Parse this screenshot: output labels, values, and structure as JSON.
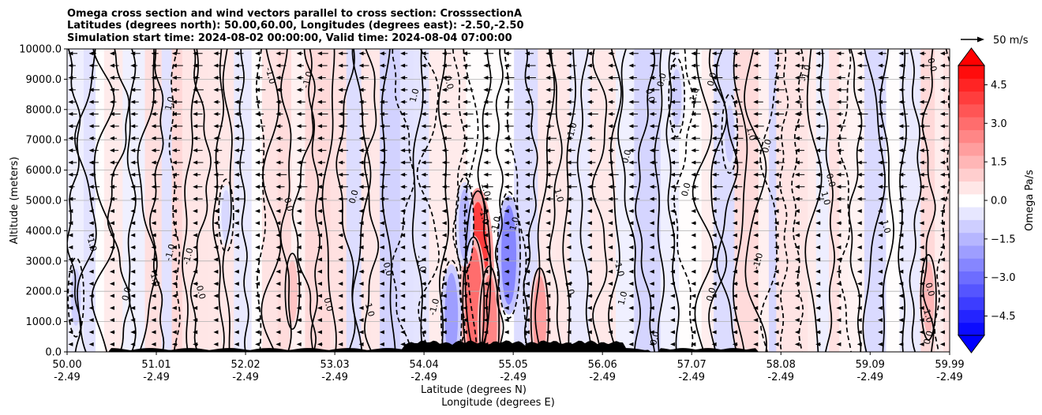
{
  "chart_data": {
    "type": "contourf",
    "title_lines": [
      "Omega cross section and wind vectors parallel to cross section: CrosssectionA",
      "Latitudes (degrees north): 50.00,60.00, Longitudes (degrees east): -2.50,-2.50",
      "Simulation start time: 2024-08-02 00:00:00, Valid time: 2024-08-04 07:00:00"
    ],
    "xlabel_lines": [
      "Latitude (degrees N)",
      "Longitude (degrees E)"
    ],
    "ylabel": "Altitude (meters)",
    "ylim": [
      0,
      10000
    ],
    "yticks": [
      0,
      1000,
      2000,
      3000,
      4000,
      5000,
      6000,
      7000,
      8000,
      9000,
      10000
    ],
    "ytick_labels": [
      "0.0",
      "1000.0",
      "2000.0",
      "3000.0",
      "4000.0",
      "5000.0",
      "6000.0",
      "7000.0",
      "8000.0",
      "9000.0",
      "10000.0"
    ],
    "xlim": [
      50.0,
      59.99
    ],
    "xticks": [
      50.0,
      51.01,
      52.02,
      53.03,
      54.04,
      55.05,
      56.06,
      57.07,
      58.08,
      59.09,
      59.99
    ],
    "xtick_lat_labels": [
      "50.00",
      "51.01",
      "52.02",
      "53.03",
      "54.04",
      "55.05",
      "56.06",
      "57.07",
      "58.08",
      "59.09",
      "59.99"
    ],
    "xtick_lon_labels": [
      "-2.49",
      "-2.49",
      "-2.49",
      "-2.49",
      "-2.49",
      "-2.49",
      "-2.49",
      "-2.49",
      "-2.49",
      "-2.49",
      "-2.49"
    ],
    "grid": "horizontal",
    "colorbar": {
      "label": "Omega Pa/s",
      "range": [
        -5.25,
        5.25
      ],
      "step": 0.5,
      "extend": "both",
      "ticks": [
        -4.5,
        -3.0,
        -1.5,
        0.0,
        1.5,
        3.0,
        4.5
      ],
      "tick_labels": [
        "−4.5",
        "−3.0",
        "−1.5",
        "0.0",
        "1.5",
        "3.0",
        "4.5"
      ],
      "colormap": "bwr"
    },
    "quiver_key": {
      "label": "50 m/s",
      "value": 50
    },
    "contour_labels": [
      "0.0",
      "-1.0",
      "1.0"
    ],
    "omega_features": [
      {
        "lat": 54.65,
        "alt": 2600,
        "value": 4.0
      },
      {
        "lat": 54.6,
        "alt": 1600,
        "value": 3.0
      },
      {
        "lat": 54.78,
        "alt": 900,
        "value": 2.5
      },
      {
        "lat": 55.35,
        "alt": 1100,
        "value": 2.0
      },
      {
        "lat": 55.0,
        "alt": 3200,
        "value": -2.5
      },
      {
        "lat": 54.35,
        "alt": 1200,
        "value": -2.0
      },
      {
        "lat": 54.5,
        "alt": 4200,
        "value": -1.5
      },
      {
        "lat": 59.75,
        "alt": 1800,
        "value": 1.5
      },
      {
        "lat": 52.55,
        "alt": 2000,
        "value": 1.2
      },
      {
        "lat": 57.5,
        "alt": 7200,
        "value": -1.0
      },
      {
        "lat": 56.9,
        "alt": 8400,
        "value": -1.0
      },
      {
        "lat": 50.1,
        "alt": 1800,
        "value": -1.0
      },
      {
        "lat": 51.8,
        "alt": 4500,
        "value": -0.8
      }
    ]
  }
}
